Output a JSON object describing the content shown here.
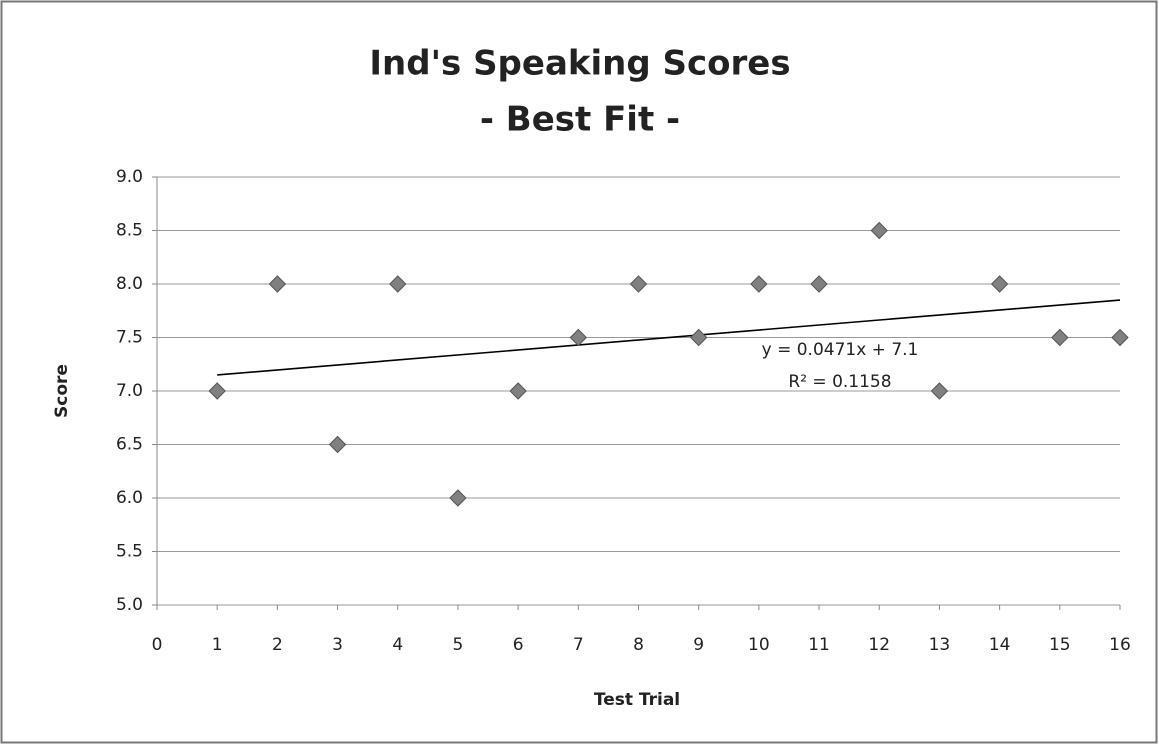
{
  "chart_data": {
    "type": "scatter",
    "title": [
      "Ind's Speaking Scores",
      "- Best Fit -"
    ],
    "xlabel": "Test Trial",
    "ylabel": "Score",
    "x": [
      1,
      2,
      3,
      4,
      5,
      6,
      7,
      8,
      9,
      10,
      11,
      12,
      13,
      14,
      15,
      16
    ],
    "series": [
      {
        "color": "#808080",
        "values": [
          7.0,
          8.0,
          6.5,
          8.0,
          6.0,
          7.0,
          7.5,
          8.0,
          7.5,
          8.0,
          8.0,
          8.5,
          7.0,
          8.0,
          7.5,
          7.5
        ]
      }
    ],
    "trendline": {
      "x": [
        1,
        16
      ],
      "values": [
        7.15,
        7.85
      ],
      "color": "#000000"
    },
    "annotations": [
      "y = 0.0471x + 7.1",
      "R² = 0.1158"
    ],
    "xlim": [
      0,
      16
    ],
    "xticks": [
      0,
      1,
      2,
      3,
      4,
      5,
      6,
      7,
      8,
      9,
      10,
      11,
      12,
      13,
      14,
      15,
      16
    ],
    "ylim": [
      5,
      9
    ],
    "yticks": [
      {
        "value": 5,
        "label": "5.0"
      },
      {
        "value": 5.5,
        "label": "5.5"
      },
      {
        "value": 6,
        "label": "6.0"
      },
      {
        "value": 6.5,
        "label": "6.5"
      },
      {
        "value": 7,
        "label": "7.0"
      },
      {
        "value": 7.5,
        "label": "7.5"
      },
      {
        "value": 8,
        "label": "8.0"
      },
      {
        "value": 8.5,
        "label": "8.5"
      },
      {
        "value": 9,
        "label": "9.0"
      }
    ],
    "grid": true
  }
}
